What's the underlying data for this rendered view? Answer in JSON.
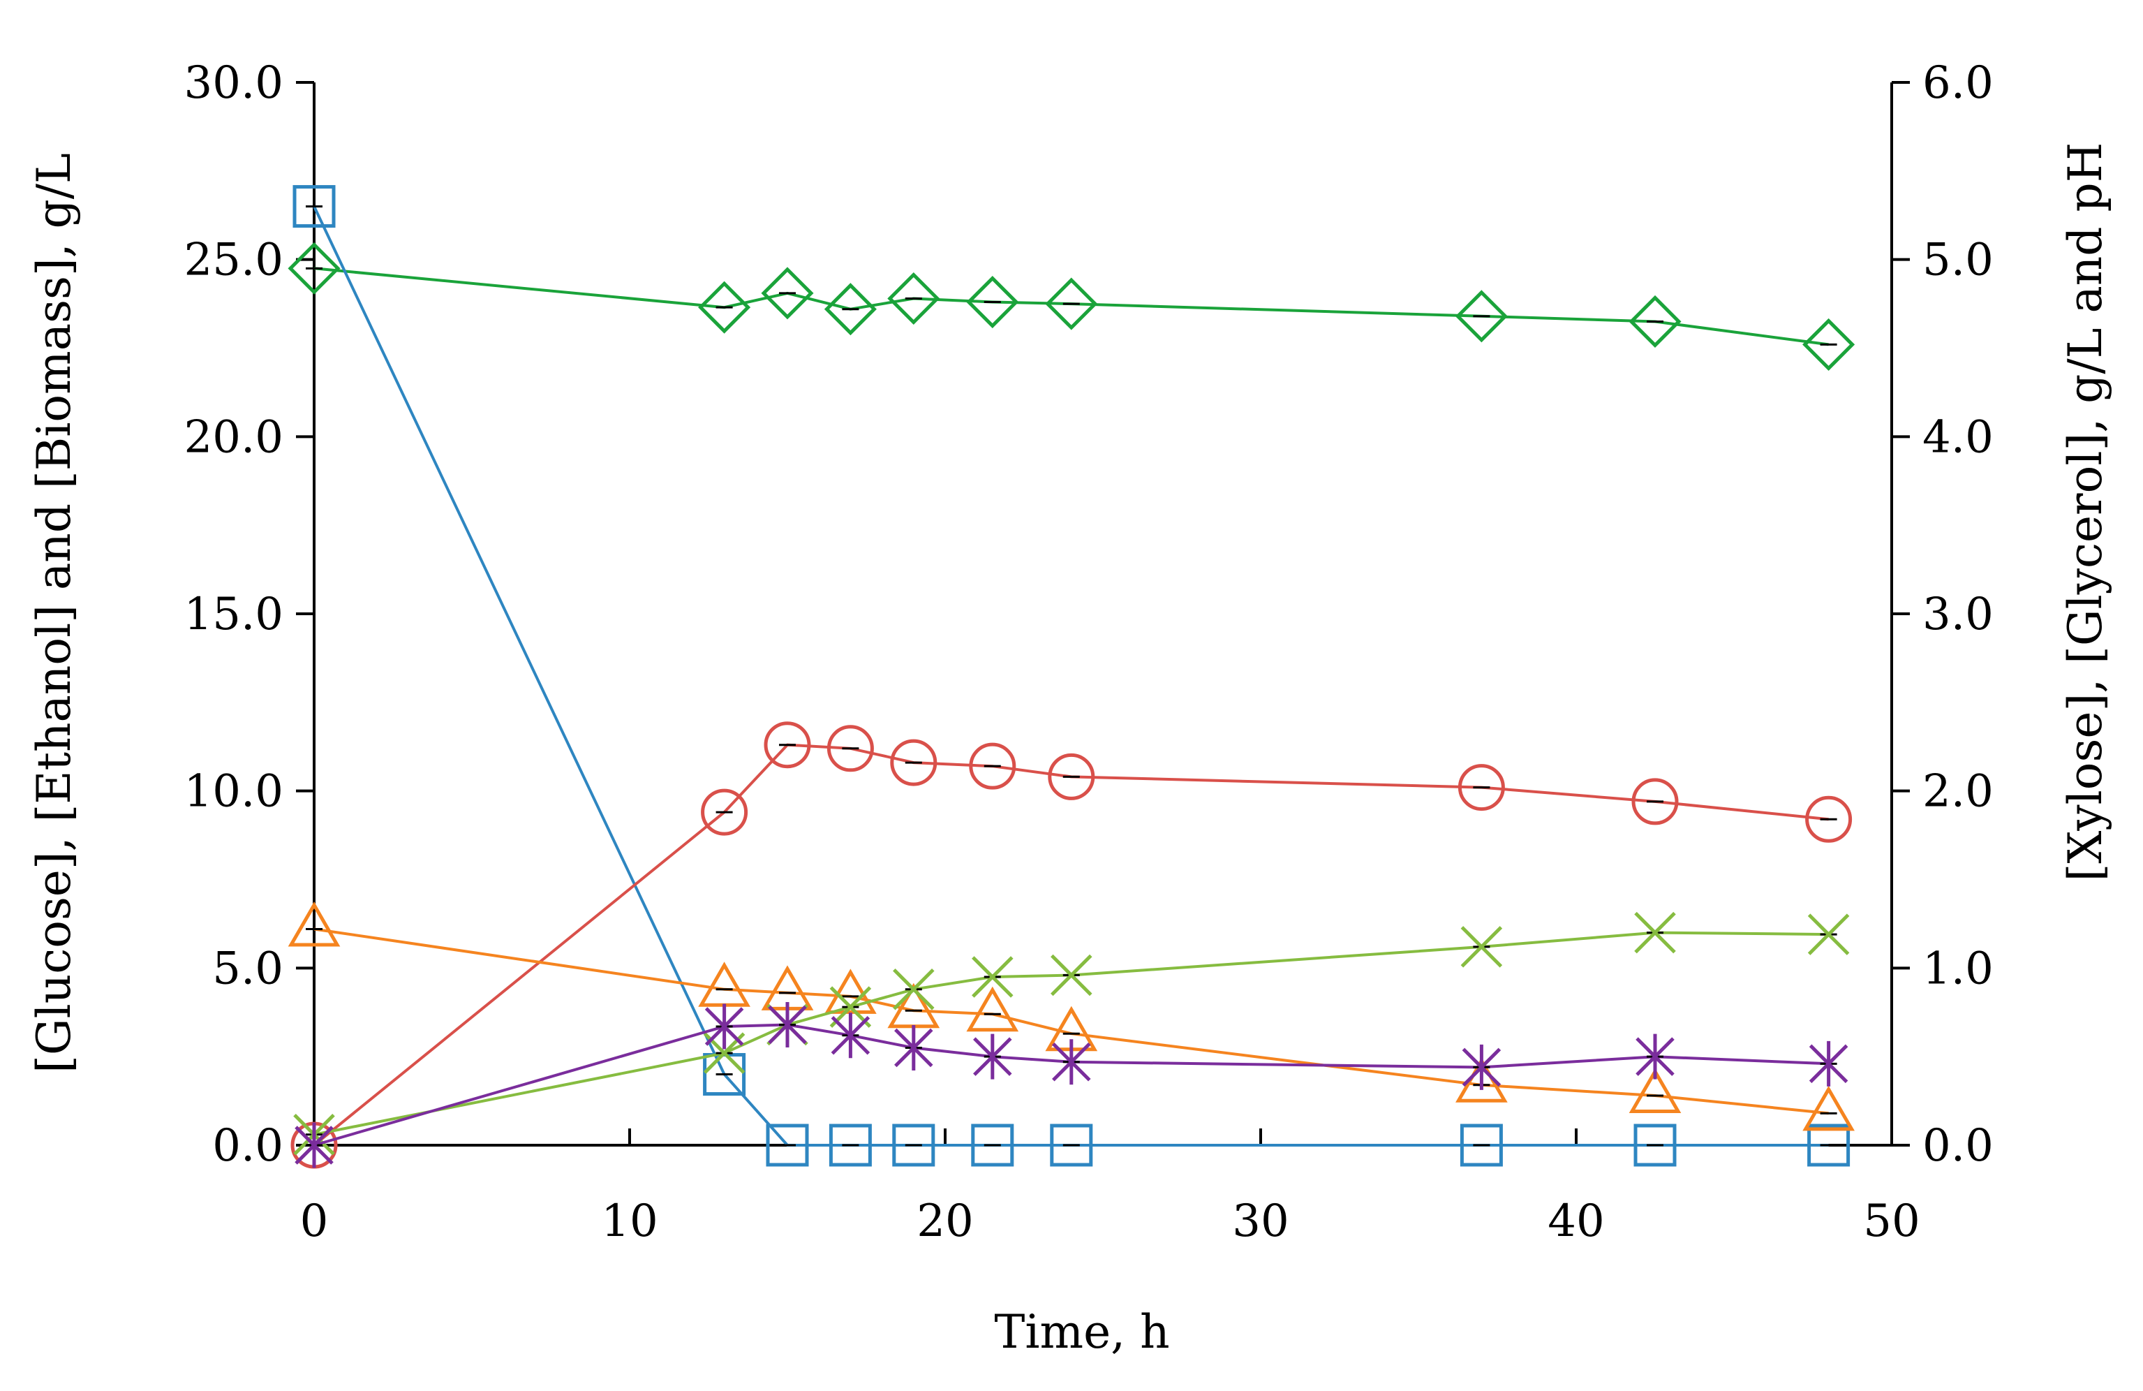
{
  "chart_data": {
    "type": "line",
    "title": "",
    "xlabel": "Time, h",
    "ylabel_left": "[Glucose], [Ethanol] and [Biomass], g/L",
    "ylabel_right": "[Xylose], [Glycerol], g/L and pH",
    "xlim": [
      0,
      50
    ],
    "ylim_left": [
      0,
      30
    ],
    "ylim_right": [
      0,
      6
    ],
    "x_ticks": [
      "0",
      "10",
      "20",
      "30",
      "40",
      "50"
    ],
    "y_left_ticks": [
      "0.0",
      "5.0",
      "10.0",
      "15.0",
      "20.0",
      "25.0",
      "30.0"
    ],
    "y_right_ticks": [
      "0.0",
      "1.0",
      "2.0",
      "3.0",
      "4.0",
      "5.0",
      "6.0"
    ],
    "grid": false,
    "legend": "none",
    "series": [
      {
        "axis": "right",
        "marker": "diamond",
        "color": "#1aa33a",
        "x": [
          0,
          13,
          15,
          17,
          19,
          21.5,
          24,
          37,
          42.5,
          48
        ],
        "y": [
          4.95,
          4.73,
          4.81,
          4.72,
          4.78,
          4.76,
          4.75,
          4.68,
          4.65,
          4.52
        ]
      },
      {
        "axis": "left",
        "marker": "square",
        "color": "#2e86c1",
        "x": [
          0,
          13,
          15,
          17,
          19,
          21.5,
          24,
          37,
          42.5,
          48
        ],
        "y": [
          26.5,
          2.0,
          0,
          0,
          0,
          0,
          0,
          0,
          0,
          0
        ]
      },
      {
        "axis": "left",
        "marker": "circle",
        "color": "#d9504a",
        "x": [
          0,
          13,
          15,
          17,
          19,
          21.5,
          24,
          37,
          42.5,
          48
        ],
        "y": [
          0,
          9.4,
          11.3,
          11.2,
          10.8,
          10.7,
          10.4,
          10.1,
          9.7,
          9.2
        ]
      },
      {
        "axis": "right",
        "marker": "triangle",
        "color": "#f5841f",
        "x": [
          0,
          13,
          15,
          17,
          19,
          21.5,
          24,
          37,
          42.5,
          48
        ],
        "y": [
          1.22,
          0.88,
          0.86,
          0.84,
          0.76,
          0.74,
          0.63,
          0.34,
          0.28,
          0.18
        ]
      },
      {
        "axis": "right",
        "marker": "x",
        "color": "#86bc40",
        "x": [
          0,
          13,
          15,
          17,
          19,
          21.5,
          24,
          37,
          42.5,
          48
        ],
        "y": [
          0.06,
          0.52,
          0.68,
          0.78,
          0.88,
          0.95,
          0.96,
          1.12,
          1.2,
          1.19
        ]
      },
      {
        "axis": "right",
        "marker": "asterisk",
        "color": "#7a2d9c",
        "x": [
          0,
          13,
          15,
          17,
          19,
          21.5,
          24,
          37,
          42.5,
          48
        ],
        "y": [
          0,
          0.67,
          0.68,
          0.62,
          0.55,
          0.5,
          0.47,
          0.44,
          0.5,
          0.46
        ]
      }
    ]
  }
}
